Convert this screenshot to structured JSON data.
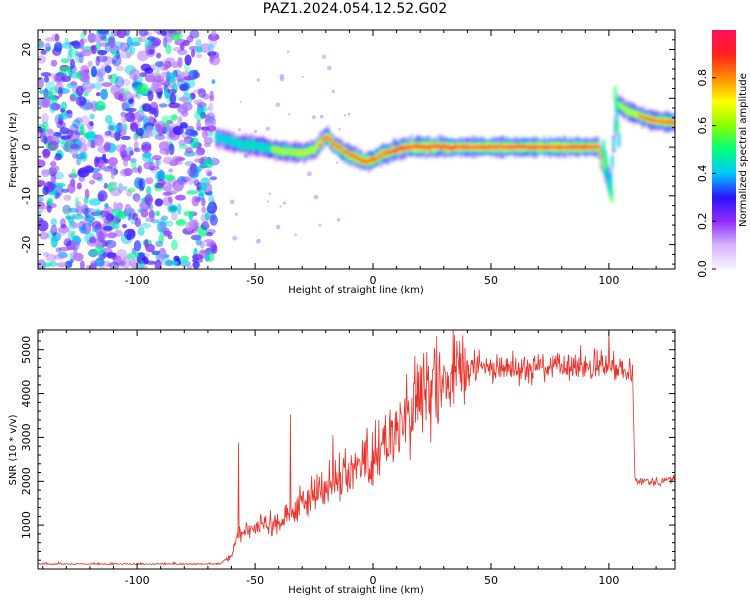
{
  "title": "PAZ1.2024.054.12.52.G02",
  "chart_data": [
    {
      "type": "heatmap",
      "xlabel": "Height of straight line (km)",
      "ylabel": "Frequency (Hz)",
      "xlim": [
        -142,
        128
      ],
      "ylim": [
        -25,
        24
      ],
      "xticks": [
        -100,
        -50,
        0,
        50,
        100
      ],
      "yticks": [
        -20,
        -10,
        0,
        10,
        20
      ],
      "colorbar": {
        "label": "Normalized spectral amplitude",
        "range": [
          0,
          1
        ],
        "ticks": [
          0.0,
          0.2,
          0.4,
          0.6,
          0.8
        ],
        "colors": [
          "#f8f4ff",
          "#d6b3ff",
          "#8e2cf8",
          "#2a14ff",
          "#00c8ff",
          "#00ff7a",
          "#8cff00",
          "#ffff00",
          "#ff8c00",
          "#ff2020",
          "#ff0f5a"
        ]
      },
      "noise_region": {
        "x": [
          -142,
          -67
        ],
        "amplitude": 0.25
      },
      "ridge": {
        "x": [
          -67,
          -60,
          -55,
          -50,
          -45,
          -40,
          -35,
          -30,
          -25,
          -20,
          -17,
          -12,
          -8,
          -4,
          0,
          3,
          8,
          12,
          18,
          25,
          35,
          50,
          60,
          70,
          80,
          88,
          95,
          98,
          100,
          103,
          107,
          112,
          118,
          124,
          128
        ],
        "frequency": [
          2.0,
          1.0,
          0.5,
          0.2,
          -0.3,
          -0.8,
          -1.0,
          -1.2,
          -0.4,
          2.3,
          0.5,
          -1.2,
          -2.0,
          -3.0,
          -2.5,
          -1.6,
          -0.8,
          -0.2,
          0.0,
          0.0,
          0.0,
          0.0,
          0.0,
          0.0,
          0.0,
          0.0,
          0.0,
          -5.0,
          -9.0,
          9.0,
          7.5,
          6.5,
          5.5,
          5.2,
          5.0
        ],
        "amplitude": [
          0.45,
          0.5,
          0.55,
          0.55,
          0.55,
          0.6,
          0.6,
          0.65,
          0.7,
          0.85,
          0.75,
          0.8,
          0.85,
          0.85,
          0.85,
          0.85,
          0.9,
          0.9,
          0.95,
          0.95,
          0.95,
          0.95,
          0.95,
          0.95,
          0.95,
          0.95,
          0.9,
          0.55,
          0.45,
          0.55,
          0.65,
          0.75,
          0.8,
          0.85,
          0.85
        ]
      }
    },
    {
      "type": "line",
      "xlabel": "Height of straight line (km)",
      "ylabel": "SNR (10 * v/v)",
      "xlim": [
        -142,
        128
      ],
      "ylim": [
        0,
        5450
      ],
      "xticks": [
        -100,
        -50,
        0,
        50,
        100
      ],
      "yticks": [
        1000,
        2000,
        3000,
        4000,
        5000
      ],
      "series": [
        {
          "color": "#e8322a",
          "x": [
            -142,
            -120,
            -100,
            -80,
            -65,
            -60,
            -58,
            -55,
            -50,
            -45,
            -40,
            -35,
            -30,
            -25,
            -20,
            -15,
            -10,
            -5,
            0,
            5,
            10,
            15,
            20,
            25,
            30,
            35,
            40,
            50,
            60,
            70,
            80,
            90,
            100,
            108,
            110,
            111,
            115,
            120,
            128
          ],
          "y": [
            100,
            100,
            100,
            100,
            100,
            300,
            700,
            900,
            950,
            1000,
            1100,
            1300,
            1500,
            1700,
            1900,
            2100,
            2250,
            2400,
            2600,
            2900,
            3200,
            3500,
            3800,
            4100,
            4300,
            4450,
            4550,
            4600,
            4600,
            4600,
            4600,
            4600,
            4600,
            4600,
            4600,
            2050,
            2000,
            2000,
            2050
          ],
          "spikes": [
            {
              "x": -57,
              "y": 2880
            },
            {
              "x": -35,
              "y": 3520
            },
            {
              "x": -17,
              "y": 3050
            },
            {
              "x": 10,
              "y": 3600
            },
            {
              "x": 20,
              "y": 4650
            },
            {
              "x": 43,
              "y": 5000
            },
            {
              "x": 70,
              "y": 4900
            },
            {
              "x": 88,
              "y": 5100
            },
            {
              "x": 100,
              "y": 5420
            }
          ]
        }
      ]
    }
  ]
}
